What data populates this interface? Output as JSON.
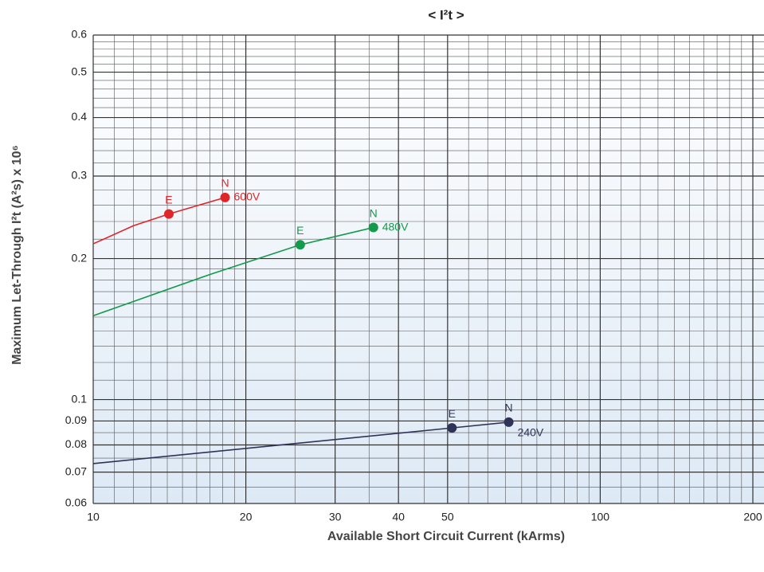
{
  "chart_data": {
    "type": "line",
    "title": "< I²t >",
    "xlabel": "Available Short Circuit Current (kArms)",
    "ylabel": "Maximum Let-Through I²t (A²s) x 10⁶",
    "xscale": "log",
    "yscale": "log",
    "xlim": [
      10,
      200
    ],
    "ylim": [
      0.06,
      0.6
    ],
    "xticks": [
      10,
      20,
      30,
      40,
      50,
      100,
      200
    ],
    "yticks": [
      0.06,
      0.07,
      0.08,
      0.09,
      0.1,
      0.2,
      0.3,
      0.4,
      0.5,
      0.6
    ],
    "xgrid": [
      11,
      12,
      13,
      14,
      15,
      16,
      17,
      18,
      19,
      25,
      35,
      45,
      55,
      60,
      65,
      70,
      75,
      80,
      85,
      90,
      95,
      110,
      120,
      130,
      140,
      150,
      160,
      170,
      180,
      190
    ],
    "ygrid": [
      0.065,
      0.075,
      0.085,
      0.095,
      0.11,
      0.12,
      0.13,
      0.14,
      0.15,
      0.16,
      0.17,
      0.18,
      0.19,
      0.22,
      0.24,
      0.26,
      0.28,
      0.32,
      0.34,
      0.36,
      0.38,
      0.42,
      0.44,
      0.46,
      0.48,
      0.52,
      0.54,
      0.56,
      0.58
    ],
    "series": [
      {
        "name": "600V",
        "color": "#e0262b",
        "x": [
          10,
          12,
          14.1,
          18.2
        ],
        "values": [
          0.215,
          0.235,
          0.249,
          0.27
        ],
        "point_labels": [
          null,
          null,
          "E",
          "N"
        ]
      },
      {
        "name": "480V",
        "color": "#139a4a",
        "x": [
          10,
          17,
          25.6,
          35.7
        ],
        "values": [
          0.151,
          0.185,
          0.214,
          0.233
        ],
        "point_labels": [
          null,
          null,
          "E",
          "N"
        ]
      },
      {
        "name": "240V",
        "color": "#2f3357",
        "x": [
          10,
          51,
          66
        ],
        "values": [
          0.073,
          0.087,
          0.0895
        ],
        "point_labels": [
          null,
          "E",
          "N"
        ]
      }
    ]
  }
}
